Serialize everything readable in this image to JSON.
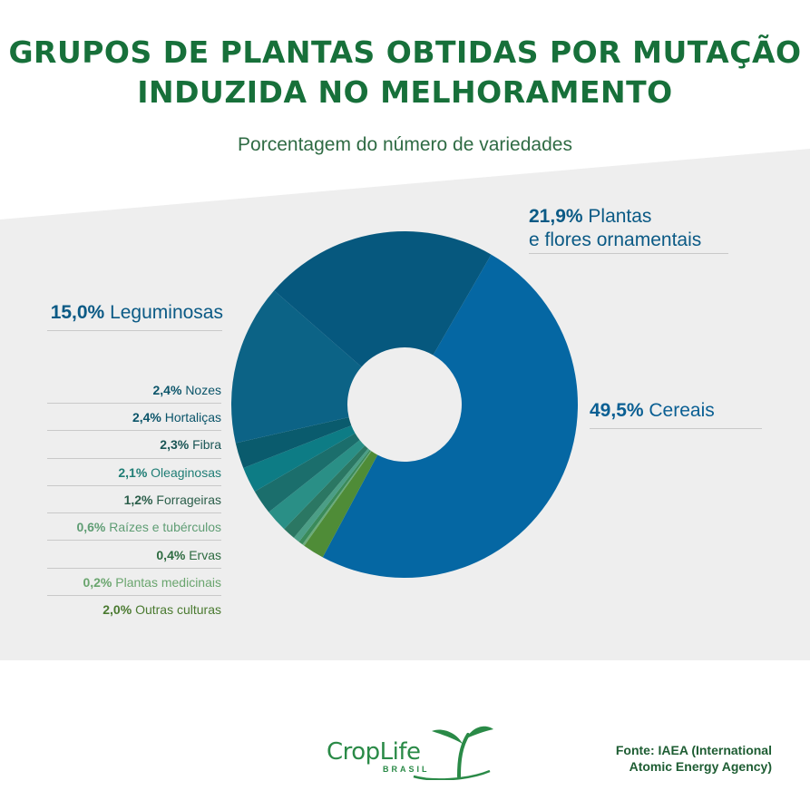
{
  "title_line1": "GRUPOS DE PLANTAS OBTIDAS POR MUTAÇÃO",
  "title_line2": "INDUZIDA NO MELHORAMENTO",
  "subtitle": "Porcentagem do número de variedades",
  "source_line1": "Fonte: IAEA (International",
  "source_line2": "Atomic Energy Agency)",
  "logo": {
    "name": "CropLife",
    "sub": "BRASIL"
  },
  "colors": {
    "background_band": "#eeeeee",
    "title": "#17703a"
  },
  "chart_data": {
    "type": "pie",
    "donut": true,
    "title": "Porcentagem do número de variedades",
    "series": [
      {
        "name": "Cereais",
        "value": 49.5,
        "value_label": "49,5%",
        "color": "#0567a3"
      },
      {
        "name": "Plantas e flores ornamentais",
        "value": 21.9,
        "value_label": "21,9%",
        "color": "#06587e"
      },
      {
        "name": "Leguminosas",
        "value": 15.0,
        "value_label": "15,0%",
        "color": "#0c6386"
      },
      {
        "name": "Nozes",
        "value": 2.4,
        "value_label": "2,4%",
        "color": "#0a5b6d"
      },
      {
        "name": "Hortaliças",
        "value": 2.4,
        "value_label": "2,4%",
        "color": "#0d7c85"
      },
      {
        "name": "Fibra",
        "value": 2.3,
        "value_label": "2,3%",
        "color": "#1b6e6c"
      },
      {
        "name": "Oleaginosas",
        "value": 2.1,
        "value_label": "2,1%",
        "color": "#2a8f86"
      },
      {
        "name": "Forrageiras",
        "value": 1.2,
        "value_label": "1,2%",
        "color": "#2b7763"
      },
      {
        "name": "Raízes e tubérculos",
        "value": 0.6,
        "value_label": "0,6%",
        "color": "#4b9e86"
      },
      {
        "name": "Ervas",
        "value": 0.4,
        "value_label": "0,4%",
        "color": "#3a8a5a"
      },
      {
        "name": "Plantas medicinais",
        "value": 0.2,
        "value_label": "0,2%",
        "color": "#6aab7a"
      },
      {
        "name": "Outras culturas",
        "value": 2.0,
        "value_label": "2,0%",
        "color": "#4f8c37"
      }
    ],
    "labels": {
      "ornamentais_line1": "Plantas",
      "ornamentais_line2": "e flores ornamentais"
    },
    "label_colors": {
      "Cereais": "#0a5f93",
      "Plantas e flores ornamentais": "#0b5a85",
      "Leguminosas": "#0b5a85",
      "Nozes": "#0a5469",
      "Hortaliças": "#0a5469",
      "Fibra": "#1a5555",
      "Oleaginosas": "#1f7d75",
      "Forrageiras": "#2b5e4a",
      "Raízes e tubérculos": "#5f9d74",
      "Ervas": "#2d6b40",
      "Plantas medicinais": "#6aa56e",
      "Outras culturas": "#4a7a30"
    }
  }
}
